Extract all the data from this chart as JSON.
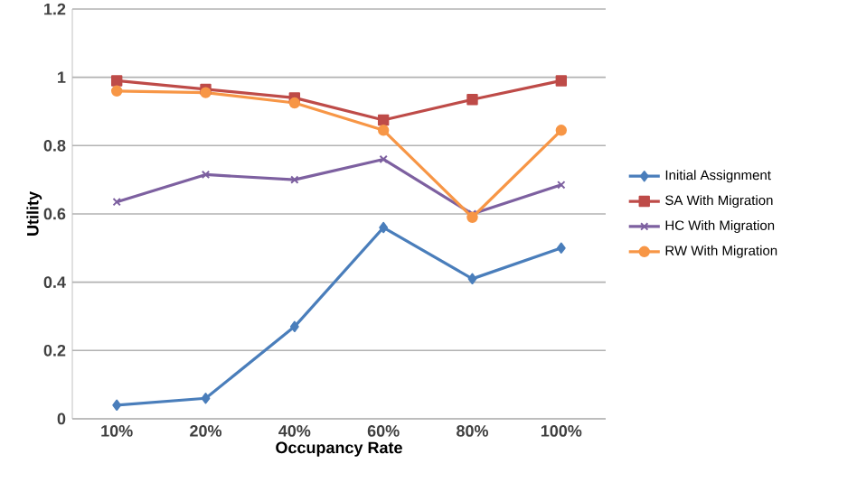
{
  "chart_data": {
    "type": "line",
    "xlabel": "Occupancy Rate",
    "ylabel": "Utility",
    "categories": [
      "10%",
      "20%",
      "40%",
      "60%",
      "80%",
      "100%"
    ],
    "series": [
      {
        "name": "Initial Assignment",
        "color": "#4a7ebb",
        "marker": "diamond",
        "values": [
          0.04,
          0.06,
          0.27,
          0.56,
          0.41,
          0.5
        ]
      },
      {
        "name": "SA With Migration",
        "color": "#be4b48",
        "marker": "square",
        "values": [
          0.99,
          0.965,
          0.94,
          0.875,
          0.935,
          0.99
        ]
      },
      {
        "name": "HC With Migration",
        "color": "#7d60a0",
        "marker": "cross",
        "values": [
          0.635,
          0.715,
          0.7,
          0.76,
          0.6,
          0.685
        ]
      },
      {
        "name": "RW With Migration",
        "color": "#f79646",
        "marker": "circle",
        "values": [
          0.96,
          0.955,
          0.925,
          0.845,
          0.59,
          0.845
        ]
      }
    ],
    "ylim": [
      0,
      1.2
    ],
    "yticks": [
      0,
      0.2,
      0.4,
      0.6,
      0.8,
      1,
      1.2
    ],
    "grid": "y",
    "legend": "right"
  }
}
